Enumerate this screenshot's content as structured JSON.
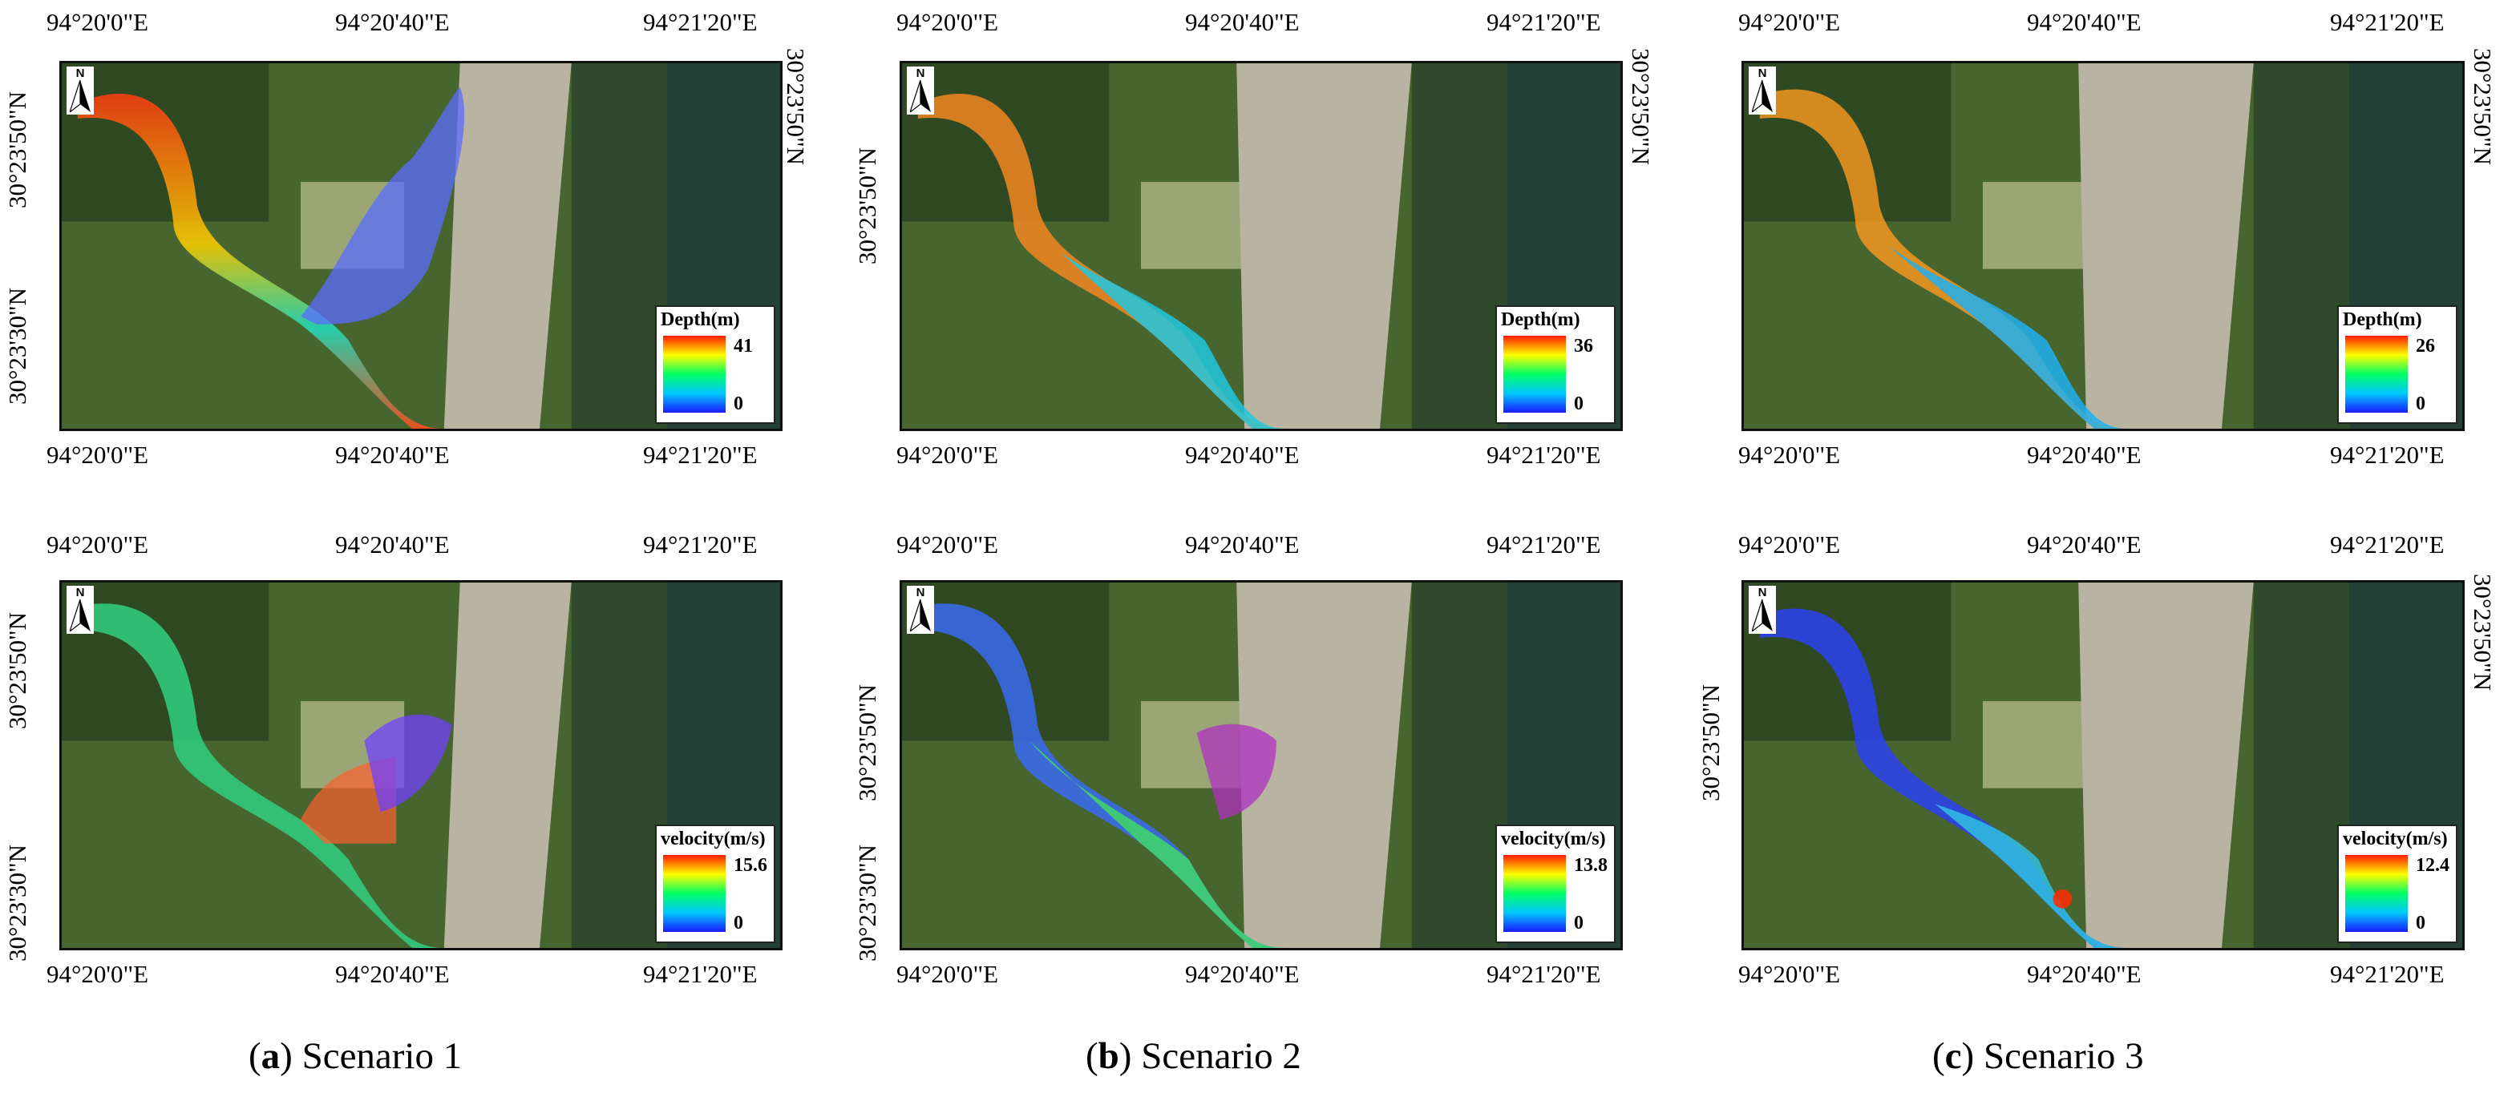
{
  "coords": {
    "lon1": "94°20'0\"E",
    "lon2": "94°20'40\"E",
    "lon3": "94°21'20\"E",
    "lat1": "30°23'50\"N",
    "lat2": "30°23'30\"N"
  },
  "north_arrow": {
    "label": "N",
    "icon": "north-arrow-icon"
  },
  "legend_colors": {
    "high": "#ff1a00",
    "mid_high": "#ffff00",
    "mid": "#00ff66",
    "mid_low": "#00c8ff",
    "low": "#1a1aff"
  },
  "scenarios": [
    {
      "caption_letter": "a",
      "caption_text": " Scenario 1",
      "depth": {
        "title": "Depth(m)",
        "max": "41",
        "min": "0"
      },
      "velocity": {
        "title": "velocity(m/s)",
        "max": "15.6",
        "min": "0"
      }
    },
    {
      "caption_letter": "b",
      "caption_text": " Scenario 2",
      "depth": {
        "title": "Depth(m)",
        "max": "36",
        "min": "0"
      },
      "velocity": {
        "title": "velocity(m/s)",
        "max": "13.8",
        "min": "0"
      }
    },
    {
      "caption_letter": "c",
      "caption_text": " Scenario 3",
      "depth": {
        "title": "Depth(m)",
        "max": "26",
        "min": "0"
      },
      "velocity": {
        "title": "velocity(m/s)",
        "max": "12.4",
        "min": "0"
      }
    }
  ]
}
